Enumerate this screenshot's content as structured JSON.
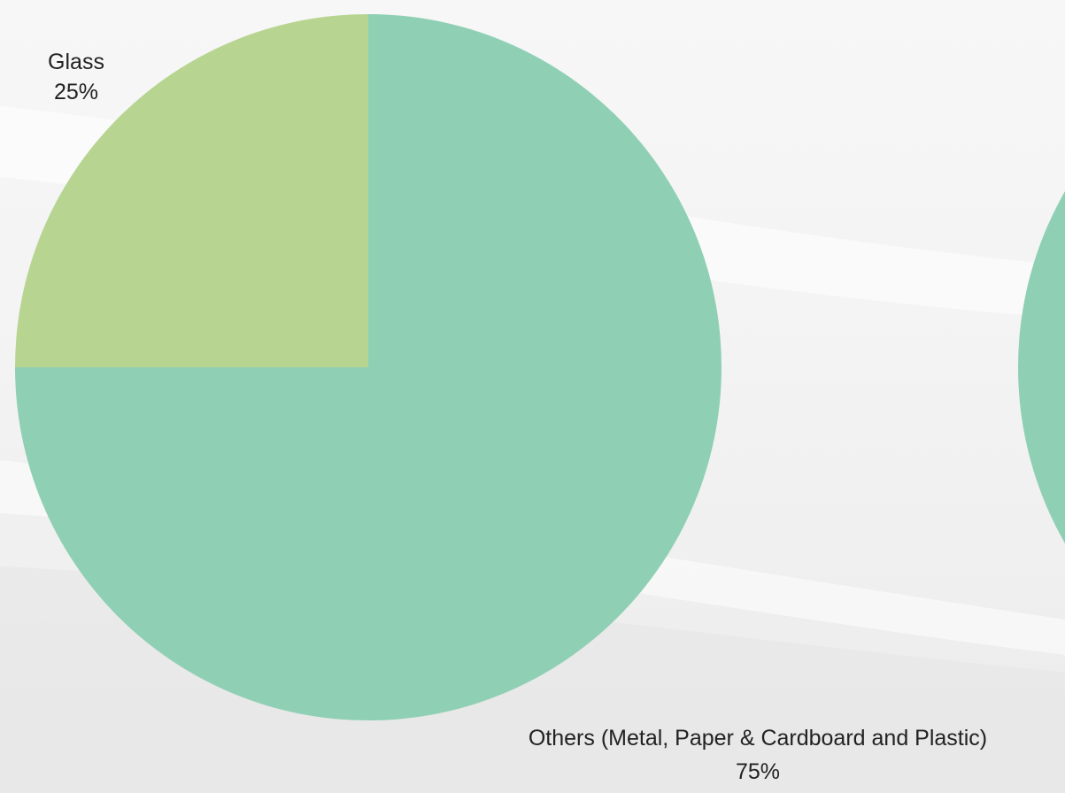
{
  "chart_data": {
    "type": "pie",
    "slices": [
      {
        "name": "Glass",
        "value": 25,
        "percent_label": "25%",
        "color": "#b7d591"
      },
      {
        "name": "Others (Metal, Paper & Cardboard and Plastic)",
        "value": 75,
        "percent_label": "75%",
        "color": "#8fd0b5"
      }
    ],
    "start_angle_deg": 0,
    "direction": "counterclockwise",
    "partial_second_pie_color": "#8fd0b5"
  }
}
